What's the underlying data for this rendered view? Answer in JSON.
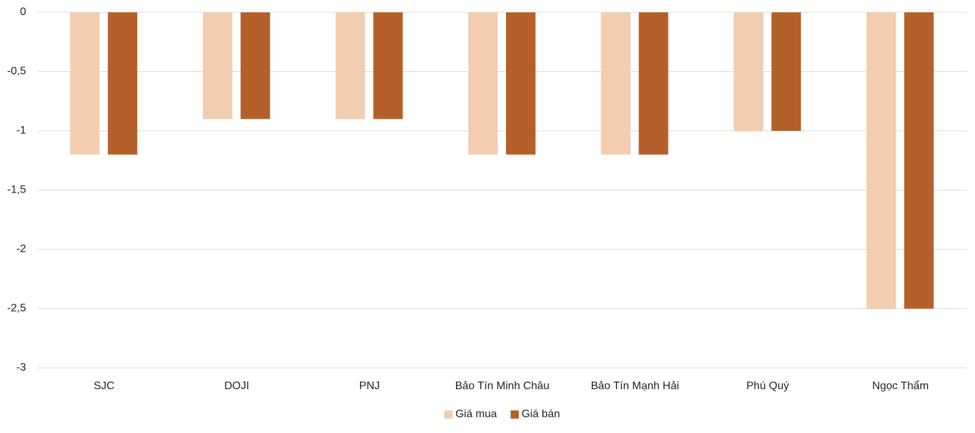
{
  "chart_data": {
    "type": "bar",
    "categories": [
      "SJC",
      "DOJI",
      "PNJ",
      "Bảo Tín Minh Châu",
      "Bảo Tín Mạnh Hải",
      "Phú Quý",
      "Ngọc Thẩm"
    ],
    "series": [
      {
        "name": "Giá mua",
        "color": "#f2cdb0",
        "values": [
          -1.2,
          -0.9,
          -0.9,
          -1.2,
          -1.2,
          -1,
          -2.5
        ]
      },
      {
        "name": "Giá bán",
        "color": "#b5602a",
        "values": [
          -1.2,
          -0.9,
          -0.9,
          -1.2,
          -1.2,
          -1,
          -2.5
        ]
      }
    ],
    "ylim": [
      -3,
      0
    ],
    "yticks": [
      0,
      {
        "value": -0.5,
        "label": "-0,5"
      },
      -1,
      {
        "value": -1.5,
        "label": "-1,5"
      },
      -2,
      {
        "value": -2.5,
        "label": "-2,5"
      },
      -3
    ],
    "grid": true,
    "legend": "bottom"
  }
}
